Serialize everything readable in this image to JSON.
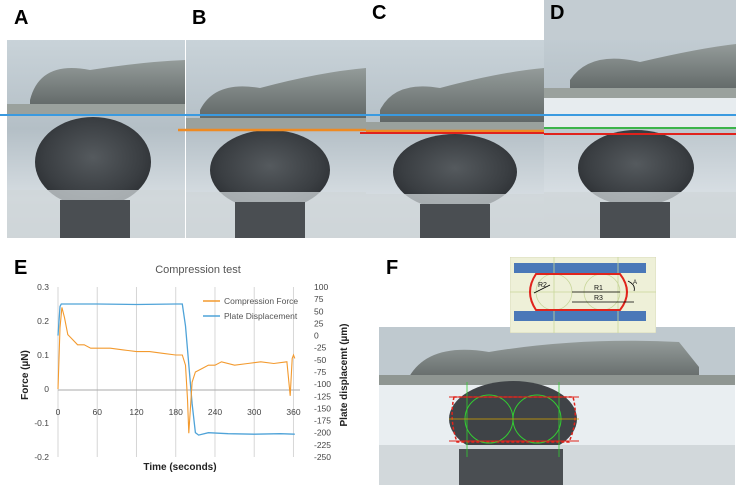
{
  "panels": {
    "a": "A",
    "b": "B",
    "c": "C",
    "d": "D",
    "e": "E",
    "f": "F"
  },
  "inset_labels": {
    "r1": "R1",
    "r2": "R2",
    "r3": "R3",
    "angle": "A"
  },
  "colors": {
    "force_series": "#f39a2e",
    "displacement_series": "#4fa3d8",
    "line_blue": "#3a9ae0",
    "line_orange": "#ee8a22",
    "line_red": "#e0221c",
    "line_green": "#3bb34a",
    "plate_blue": "#4a78b8",
    "fit_red": "#e0241c",
    "fit_green": "#33cc33"
  },
  "chart_data": {
    "type": "line",
    "title": "Compression test",
    "xlabel": "Time (seconds)",
    "ylabel_left": "Force (µN)",
    "ylabel_right": "Plate displacemt (µm)",
    "xlim": [
      0,
      370
    ],
    "ylim_left": [
      -0.2,
      0.3
    ],
    "ylim_right": [
      -250,
      100
    ],
    "x_ticks": [
      0,
      60,
      120,
      180,
      240,
      300,
      360
    ],
    "y_ticks_left": [
      "0.3",
      "0.2",
      "0.1",
      "0",
      "-0.1",
      "-0.2"
    ],
    "y_ticks_right": [
      "100",
      "75",
      "50",
      "25",
      "0",
      "-25",
      "-50",
      "-75",
      "-100",
      "-125",
      "-150",
      "-175",
      "-200",
      "-225",
      "-250"
    ],
    "x_grid": true,
    "legend_position": "top-right",
    "series": [
      {
        "name": "Compression Force",
        "axis": "left",
        "x": [
          0,
          3,
          6,
          10,
          15,
          20,
          30,
          40,
          50,
          60,
          80,
          100,
          120,
          140,
          160,
          180,
          190,
          195,
          198,
          200,
          205,
          210,
          220,
          230,
          240,
          250,
          270,
          290,
          310,
          330,
          350,
          355,
          358,
          360,
          362
        ],
        "y": [
          0.0,
          0.18,
          0.24,
          0.21,
          0.16,
          0.15,
          0.13,
          0.13,
          0.12,
          0.12,
          0.12,
          0.115,
          0.11,
          0.11,
          0.105,
          0.1,
          0.1,
          0.07,
          -0.03,
          -0.13,
          0.02,
          0.05,
          0.06,
          0.07,
          0.07,
          0.08,
          0.07,
          0.075,
          0.08,
          0.075,
          0.08,
          -0.02,
          0.09,
          0.1,
          0.09
        ]
      },
      {
        "name": "Plate Displacement",
        "axis": "right",
        "x": [
          0,
          3,
          5,
          10,
          60,
          120,
          180,
          190,
          195,
          200,
          205,
          210,
          215,
          230,
          260,
          300,
          340,
          362
        ],
        "y": [
          0,
          60,
          65,
          65,
          65,
          64,
          65,
          65,
          20,
          -60,
          -140,
          -200,
          -205,
          -200,
          -202,
          -203,
          -202,
          -203
        ]
      }
    ]
  }
}
